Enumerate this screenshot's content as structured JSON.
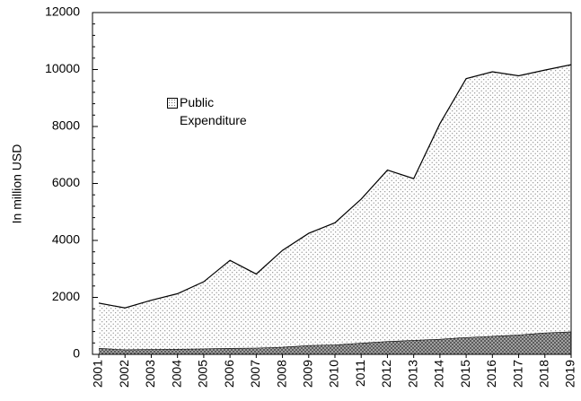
{
  "chart_data": {
    "type": "stacked_area",
    "ylabel": "In million USD",
    "categories": [
      "2001",
      "2002",
      "2003",
      "2004",
      "2005",
      "2006",
      "2007",
      "2008",
      "2009",
      "2010",
      "2011",
      "2012",
      "2013",
      "2014",
      "2015",
      "2016",
      "2017",
      "2018",
      "2019"
    ],
    "series": [
      {
        "color": "#555555",
        "pattern": "crosshatch",
        "values": [
          220,
          170,
          180,
          190,
          200,
          220,
          230,
          260,
          320,
          340,
          400,
          460,
          500,
          540,
          600,
          640,
          690,
          760,
          800
        ]
      },
      {
        "name": "Public Expenditure",
        "color": "#777777",
        "pattern": "dots",
        "values": [
          1580,
          1460,
          1720,
          1940,
          2350,
          3080,
          2590,
          3390,
          3930,
          4280,
          5050,
          6010,
          5670,
          7560,
          9080,
          9280,
          9090,
          9220,
          9370
        ]
      }
    ],
    "ylim": [
      0,
      12000
    ],
    "yticks": [
      0,
      2000,
      4000,
      6000,
      8000,
      10000,
      12000
    ]
  }
}
